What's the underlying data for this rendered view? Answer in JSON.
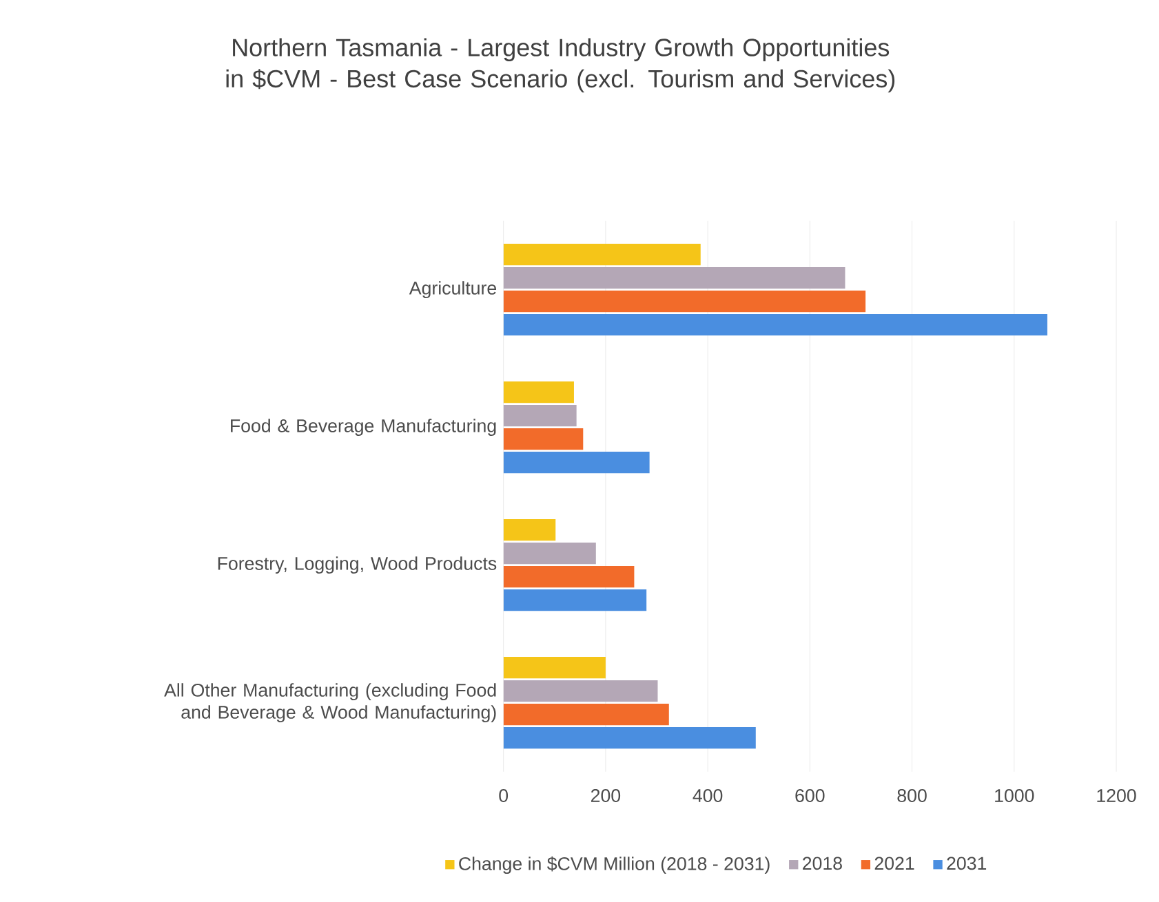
{
  "chart_data": {
    "type": "bar",
    "orientation": "horizontal",
    "title": "Northern Tasmania - Largest Industry Growth Opportunities in $CVM - Best Case Scenario (excl. Tourism and Services)",
    "categories": [
      "Agriculture",
      "Food & Beverage Manufacturing",
      "Forestry, Logging, Wood Products",
      "All Other Manufacturing (excluding Food and Beverage & Wood Manufacturing)"
    ],
    "series": [
      {
        "name": "Change in $CVM Million (2018 - 2031)",
        "color": "#f5c518",
        "values": [
          386,
          138,
          102,
          200
        ]
      },
      {
        "name": "2018",
        "color": "#b4a7b6",
        "values": [
          669,
          143,
          181,
          302
        ]
      },
      {
        "name": "2021",
        "color": "#f26b2a",
        "values": [
          709,
          156,
          256,
          324
        ]
      },
      {
        "name": "2031",
        "color": "#4a8ee0",
        "values": [
          1065,
          286,
          280,
          494
        ]
      }
    ],
    "xlim": [
      0,
      1200
    ],
    "xticks": [
      0,
      200,
      400,
      600,
      800,
      1000,
      1200
    ],
    "grid": "x",
    "legend": "bottom"
  }
}
